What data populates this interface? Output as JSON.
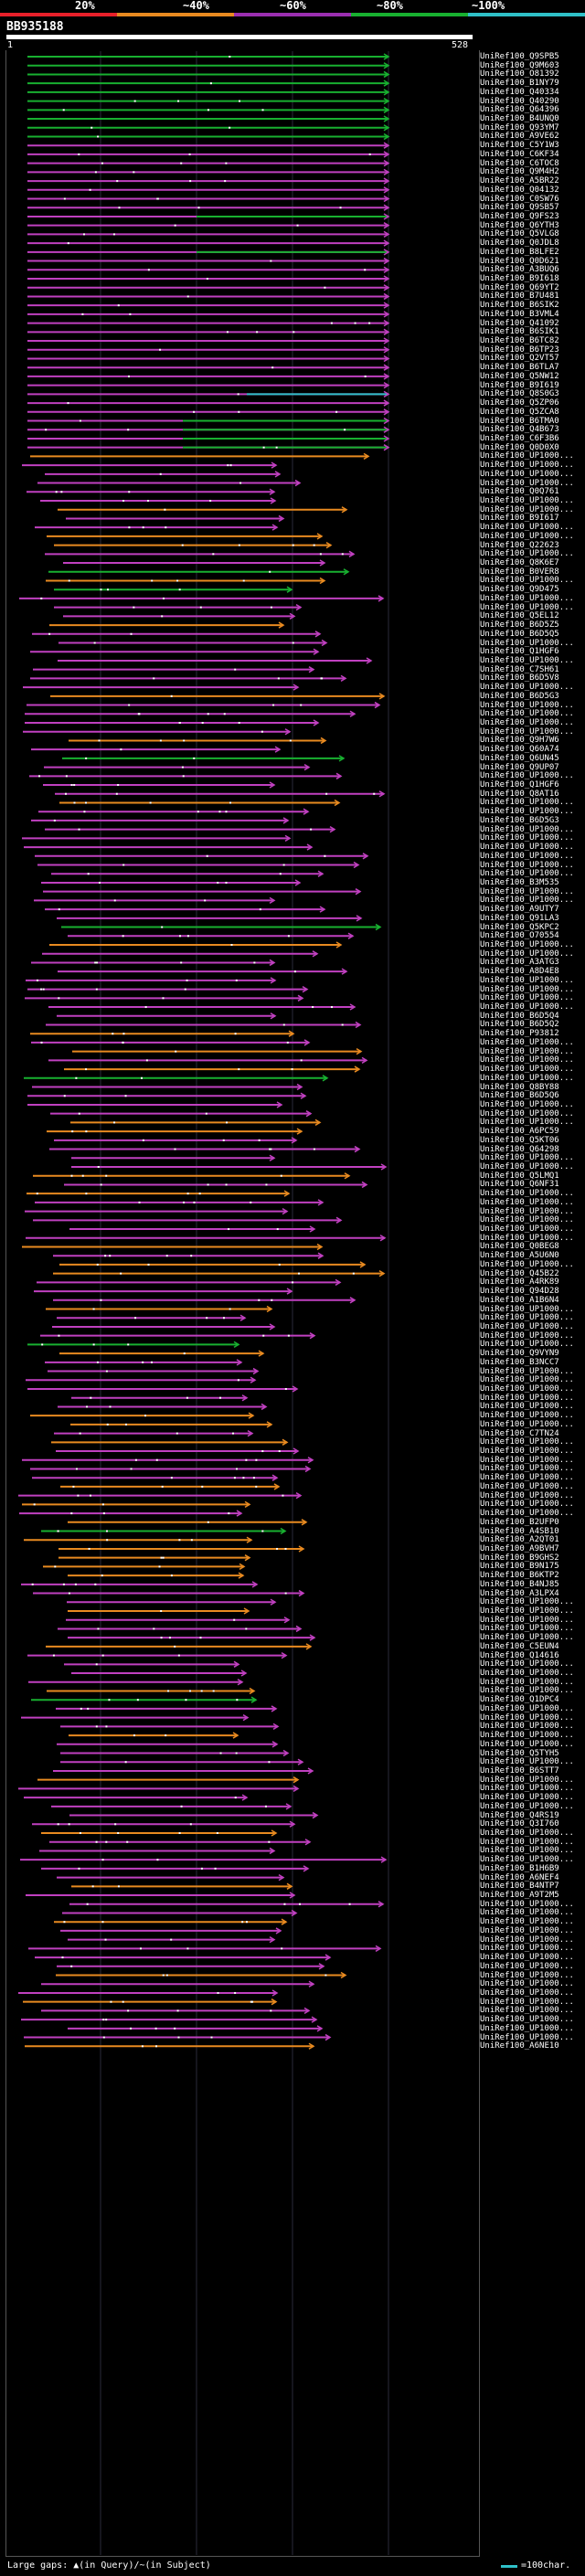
{
  "scale": {
    "labels": [
      "20%",
      "~40%",
      "~60%",
      "~80%",
      "~100%"
    ],
    "colors": [
      "#e8202a",
      "#e88a20",
      "#9b2fb0",
      "#18b030",
      "#2fc0c8"
    ]
  },
  "query": {
    "id": "BB935188",
    "start": "1",
    "end": "528"
  },
  "footer": {
    "gaps": "Large gaps: ▲(in Query)/~(in Subject)",
    "legend": "=100char."
  },
  "hits": [
    "UniRef100_Q9SPB5",
    "UniRef100_Q9M603",
    "UniRef100_O81392",
    "UniRef100_B1NY79",
    "UniRef100_Q40334",
    "UniRef100_Q40290",
    "UniRef100_Q64396",
    "UniRef100_B4UNQ0",
    "UniRef100_Q93YM7",
    "UniRef100_A9VE62",
    "UniRef100_C5Y1W3",
    "UniRef100_C6KF34",
    "UniRef100_C6TOC8",
    "UniRef100_Q9M4H2",
    "UniRef100_A5BR22",
    "UniRef100_Q04132",
    "UniRef100_C0SW76",
    "UniRef100_Q9SB57",
    "UniRef100_Q9FS23",
    "UniRef100_Q6YTH3",
    "UniRef100_Q5VLG8",
    "UniRef100_Q0JDL8",
    "UniRef100_B8LFE2",
    "UniRef100_Q0D621",
    "UniRef100_A3BUQ6",
    "UniRef100_B9I618",
    "UniRef100_Q69YT2",
    "UniRef100_B7U481",
    "UniRef100_B6SIK2",
    "UniRef100_B3VML4",
    "UniRef100_Q41092",
    "UniRef100_B6SIK1",
    "UniRef100_B6TC82",
    "UniRef100_B6TP23",
    "UniRef100_Q2VT57",
    "UniRef100_B6TLA7",
    "UniRef100_Q5NW12",
    "UniRef100_B9I619",
    "UniRef100_Q8S0G3",
    "UniRef100_Q5ZP06",
    "UniRef100_Q5ZCA8",
    "UniRef100_B6TMA0",
    "UniRef100_Q4B673",
    "UniRef100_C6F3B6",
    "UniRef100_Q0D0X0",
    "UniRef100_UP1000...",
    "UniRef100_UP1000...",
    "UniRef100_UP1000...",
    "UniRef100_UP1000...",
    "UniRef100_Q0Q761",
    "UniRef100_UP1000...",
    "UniRef100_UP1000...",
    "UniRef100_B9I617",
    "UniRef100_UP1000...",
    "UniRef100_UP1000...",
    "UniRef100_Q22623",
    "UniRef100_UP1000...",
    "UniRef100_Q8K6E7",
    "UniRef100_B0VER8",
    "UniRef100_UP1000...",
    "UniRef100_Q9D475",
    "UniRef100_UP1000...",
    "UniRef100_UP1000...",
    "UniRef100_Q5EL12",
    "UniRef100_B6D5Z5",
    "UniRef100_B6D5Q5",
    "UniRef100_UP1000...",
    "UniRef100_Q1HGF6",
    "UniRef100_UP1000...",
    "UniRef100_C7SH61",
    "UniRef100_B6D5V8",
    "UniRef100_UP1000...",
    "UniRef100_B6D5G3",
    "UniRef100_UP1000...",
    "UniRef100_UP1000...",
    "UniRef100_UP1000...",
    "UniRef100_UP1000...",
    "UniRef100_Q9H7W6",
    "UniRef100_Q60A74",
    "UniRef100_Q6UN45",
    "UniRef100_Q9UP07",
    "UniRef100_UP1000...",
    "UniRef100_Q1HGF6",
    "UniRef100_Q8AT16",
    "UniRef100_UP1000...",
    "UniRef100_UP1000...",
    "UniRef100_B6D5G3",
    "UniRef100_UP1000...",
    "UniRef100_UP1000...",
    "UniRef100_UP1000...",
    "UniRef100_UP1000...",
    "UniRef100_UP1000...",
    "UniRef100_UP1000...",
    "UniRef100_B3M535",
    "UniRef100_UP1000...",
    "UniRef100_UP1000...",
    "UniRef100_A9UTY7",
    "UniRef100_Q91LA3",
    "UniRef100_Q5KPC2",
    "UniRef100_O70554",
    "UniRef100_UP1000...",
    "UniRef100_UP1000...",
    "UniRef100_A3ATG3",
    "UniRef100_A8D4E8",
    "UniRef100_UP1000...",
    "UniRef100_UP1000...",
    "UniRef100_UP1000...",
    "UniRef100_UP1000...",
    "UniRef100_B6D5Q4",
    "UniRef100_B6D5Q2",
    "UniRef100_P93812",
    "UniRef100_UP1000...",
    "UniRef100_UP1000...",
    "UniRef100_UP1000...",
    "UniRef100_UP1000...",
    "UniRef100_UP1000...",
    "UniRef100_Q8BY88",
    "UniRef100_B6D5Q6",
    "UniRef100_UP1000...",
    "UniRef100_UP1000...",
    "UniRef100_UP1000...",
    "UniRef100_A6PC59",
    "UniRef100_Q5KT06",
    "UniRef100_Q64298",
    "UniRef100_UP1000...",
    "UniRef100_UP1000...",
    "UniRef100_Q5LMQ1",
    "UniRef100_Q6NF31",
    "UniRef100_UP1000...",
    "UniRef100_UP1000...",
    "UniRef100_UP1000...",
    "UniRef100_UP1000...",
    "UniRef100_UP1000...",
    "UniRef100_UP1000...",
    "UniRef100_Q0BEG8",
    "UniRef100_A5U6N0",
    "UniRef100_UP1000...",
    "UniRef100_Q45B22",
    "UniRef100_A4RK89",
    "UniRef100_Q94D28",
    "UniRef100_A1B6N4",
    "UniRef100_UP1000...",
    "UniRef100_UP1000...",
    "UniRef100_UP1000...",
    "UniRef100_UP1000...",
    "UniRef100_UP1000...",
    "UniRef100_Q9VYN9",
    "UniRef100_B3NCC7",
    "UniRef100_UP1000...",
    "UniRef100_UP1000...",
    "UniRef100_UP1000...",
    "UniRef100_UP1000...",
    "UniRef100_UP1000...",
    "UniRef100_UP1000...",
    "UniRef100_UP1000...",
    "UniRef100_C7TN24",
    "UniRef100_UP1000...",
    "UniRef100_UP1000...",
    "UniRef100_UP1000...",
    "UniRef100_UP1000...",
    "UniRef100_UP1000...",
    "UniRef100_UP1000...",
    "UniRef100_UP1000...",
    "UniRef100_UP1000...",
    "UniRef100_UP1000...",
    "UniRef100_B2UFP0",
    "UniRef100_A4SB10",
    "UniRef100_A2QT01",
    "UniRef100_A9BVH7",
    "UniRef100_B9GHS2",
    "UniRef100_B9N175",
    "UniRef100_B6KTP2",
    "UniRef100_B4NJ85",
    "UniRef100_A3LPX4",
    "UniRef100_UP1000...",
    "UniRef100_UP1000...",
    "UniRef100_UP1000...",
    "UniRef100_UP1000...",
    "UniRef100_UP1000...",
    "UniRef100_C5EUN4",
    "UniRef100_Q14616",
    "UniRef100_UP1000...",
    "UniRef100_UP1000...",
    "UniRef100_UP1000...",
    "UniRef100_UP1000...",
    "UniRef100_Q1DPC4",
    "UniRef100_UP1000...",
    "UniRef100_UP1000...",
    "UniRef100_UP1000...",
    "UniRef100_UP1000...",
    "UniRef100_UP1000...",
    "UniRef100_Q5TYH5",
    "UniRef100_UP1000...",
    "UniRef100_B6STT7",
    "UniRef100_UP1000...",
    "UniRef100_UP1000...",
    "UniRef100_UP1000...",
    "UniRef100_UP1000...",
    "UniRef100_Q4RS19",
    "UniRef100_Q3I760",
    "UniRef100_UP1000...",
    "UniRef100_UP1000...",
    "UniRef100_UP1000...",
    "UniRef100_UP1000...",
    "UniRef100_B1H6B9",
    "UniRef100_A6NEF4",
    "UniRef100_B4NTP7",
    "UniRef100_A9T2M5",
    "UniRef100_UP1000...",
    "UniRef100_UP1000...",
    "UniRef100_UP1000...",
    "UniRef100_UP1000...",
    "UniRef100_UP1000...",
    "UniRef100_UP1000...",
    "UniRef100_UP1000...",
    "UniRef100_UP1000...",
    "UniRef100_UP1000...",
    "UniRef100_UP1000...",
    "UniRef100_UP1000...",
    "UniRef100_UP1000...",
    "UniRef100_UP1000...",
    "UniRef100_UP1000...",
    "UniRef100_UP1000...",
    "UniRef100_UP1000...",
    "UniRef100_A6NE10"
  ]
}
